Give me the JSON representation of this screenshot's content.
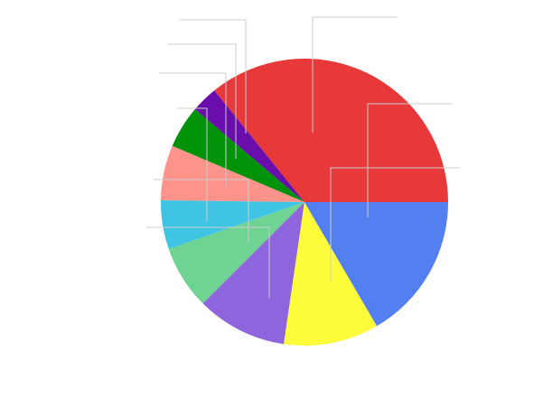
{
  "chart_data": {
    "type": "pie",
    "title": "",
    "legend": "none",
    "start_angle_deg": 0,
    "direction": "counterclockwise",
    "slices": [
      {
        "label": "",
        "value": 35.8,
        "color": "#e8393a"
      },
      {
        "label": "",
        "value": 3.0,
        "color": "#6a0dad"
      },
      {
        "label": "",
        "value": 4.8,
        "color": "#00930a"
      },
      {
        "label": "",
        "value": 6.2,
        "color": "#fd938a"
      },
      {
        "label": "",
        "value": 5.5,
        "color": "#40c4e4"
      },
      {
        "label": "",
        "value": 7.2,
        "color": "#6ed393"
      },
      {
        "label": "",
        "value": 10.2,
        "color": "#8e65dc"
      },
      {
        "label": "",
        "value": 10.7,
        "color": "#fcfc3a"
      },
      {
        "label": "",
        "value": 16.6,
        "color": "#5380f1"
      }
    ]
  }
}
